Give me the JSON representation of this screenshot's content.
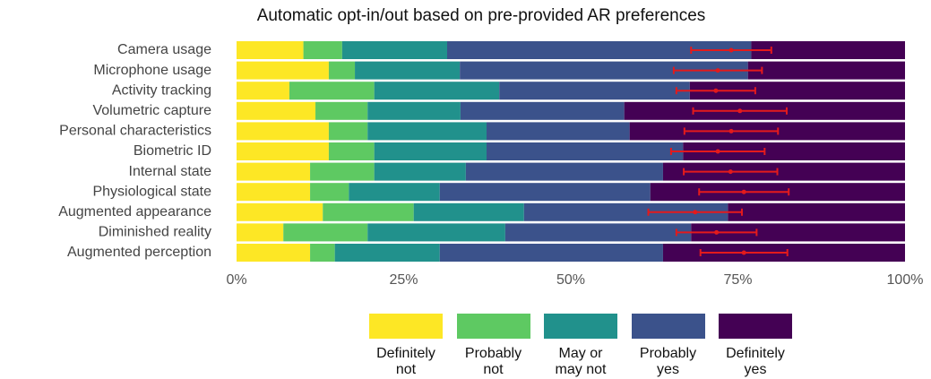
{
  "chart_data": {
    "type": "stacked-bar-horizontal",
    "title": "Automatic opt-in/out based on pre-provided AR preferences",
    "categories": [
      "Camera usage",
      "Microphone usage",
      "Activity tracking",
      "Volumetric capture",
      "Personal characteristics",
      "Biometric ID",
      "Internal state",
      "Physiological state",
      "Augmented appearance",
      "Diminished reality",
      "Augmented perception"
    ],
    "series": [
      {
        "name": "Definitely not",
        "color": "#fde725",
        "values": [
          10,
          13.8,
          7.9,
          11.8,
          13.8,
          13.8,
          11,
          11,
          12.9,
          7,
          11
        ]
      },
      {
        "name": "Probably not",
        "color": "#5ec962",
        "values": [
          5.8,
          3.9,
          12.7,
          7.8,
          5.8,
          6.8,
          9.6,
          5.8,
          13.6,
          12.6,
          3.7
        ]
      },
      {
        "name": "May or may not",
        "color": "#21918c",
        "values": [
          15.7,
          15.7,
          18.7,
          13.9,
          17.8,
          16.8,
          13.7,
          13.6,
          16.5,
          20.6,
          15.7
        ]
      },
      {
        "name": "Probably yes",
        "color": "#3b528b",
        "values": [
          45.5,
          43.1,
          28.5,
          24.5,
          21.4,
          29.4,
          29.5,
          31.5,
          30.5,
          27.8,
          33.4
        ]
      },
      {
        "name": "Definitely yes",
        "color": "#440154",
        "values": [
          23,
          23.5,
          32.2,
          42,
          41.2,
          33.2,
          36.2,
          38.1,
          26.5,
          32,
          36.2
        ]
      }
    ],
    "error_bars": {
      "color": "#e31a1c",
      "values": [
        74,
        72,
        71.7,
        75.3,
        74,
        72,
        73.9,
        75.9,
        68.6,
        71.8,
        75.9
      ],
      "errors": [
        6,
        6.6,
        5.9,
        7,
        7,
        7,
        7,
        6.7,
        7,
        6,
        6.5
      ]
    },
    "xlim": [
      0,
      100
    ],
    "xticks": [
      {
        "value": 0,
        "label": "0%"
      },
      {
        "value": 25,
        "label": "25%"
      },
      {
        "value": 50,
        "label": "50%"
      },
      {
        "value": 75,
        "label": "75%"
      },
      {
        "value": 100,
        "label": "100%"
      }
    ],
    "grid": false,
    "legend": "bottom"
  }
}
